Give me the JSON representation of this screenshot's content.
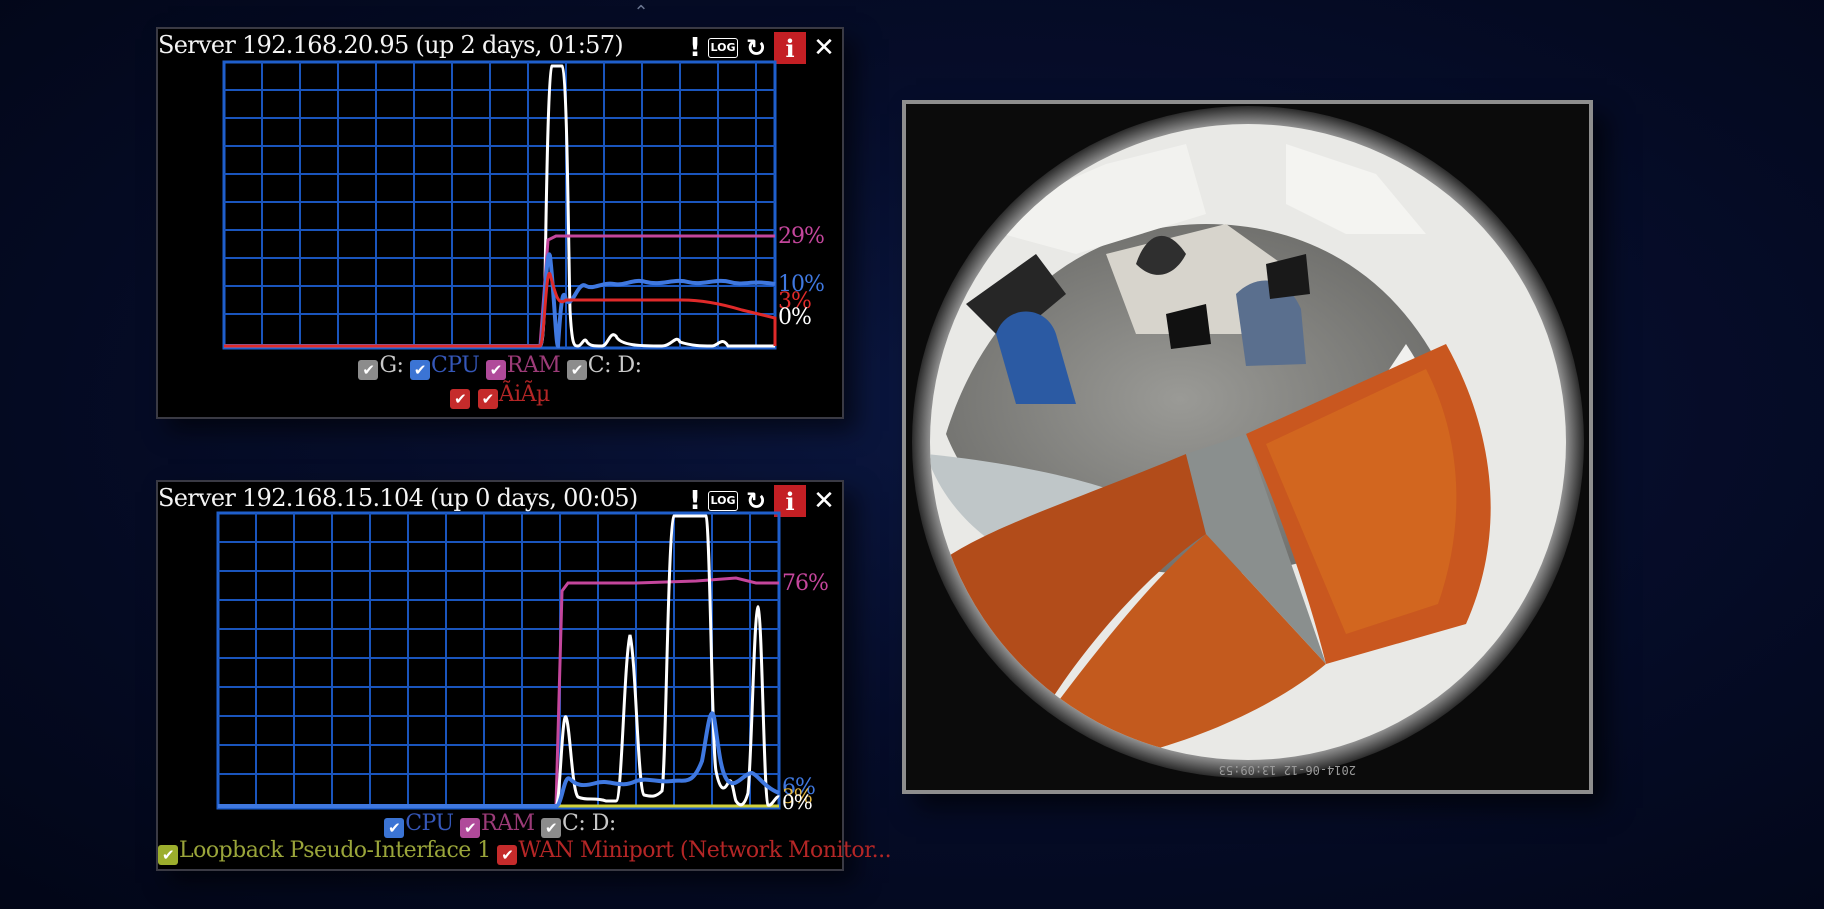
{
  "panels": [
    {
      "title": "Server 192.168.20.95 (up 2 days, 01:57)",
      "toolbar": {
        "alert": "!",
        "log": "LOG",
        "refresh": "↻",
        "info": "i",
        "close": "✕"
      },
      "readouts": {
        "ram": "29%",
        "cpu": "10%",
        "disk": "3%",
        "gpu": "0%"
      },
      "legend": {
        "g": "G:",
        "cpu": "CPU",
        "ram": "RAM",
        "cd": "C: D:",
        "net": "ÃiÃµ"
      },
      "colors": {
        "gpu": "#ffffff",
        "cpu": "#3f78e0",
        "ram": "#c4469c",
        "disk": "#e02a2a",
        "grid": "#1f5fcc"
      }
    },
    {
      "title": "Server 192.168.15.104 (up 0 days, 00:05)",
      "toolbar": {
        "alert": "!",
        "log": "LOG",
        "refresh": "↻",
        "info": "i",
        "close": "✕"
      },
      "readouts": {
        "ram": "76%",
        "cpu": "6%",
        "disk": "0%",
        "gpu": "3%"
      },
      "legend": {
        "cpu": "CPU",
        "ram": "RAM",
        "cd": "C: D:",
        "net1": "Loopback Pseudo-Interface 1",
        "net2": "WAN Miniport (Network Monitor..."
      },
      "colors": {
        "gpu": "#ffffff",
        "cpu": "#3f78e0",
        "ram": "#c4469c",
        "net": "#d2d23a",
        "grid": "#1f5fcc"
      }
    }
  ],
  "camera": {
    "timestamp": "2014-06-12 13:09:53"
  },
  "icons": {
    "collapse": "chevron-up-icon"
  }
}
